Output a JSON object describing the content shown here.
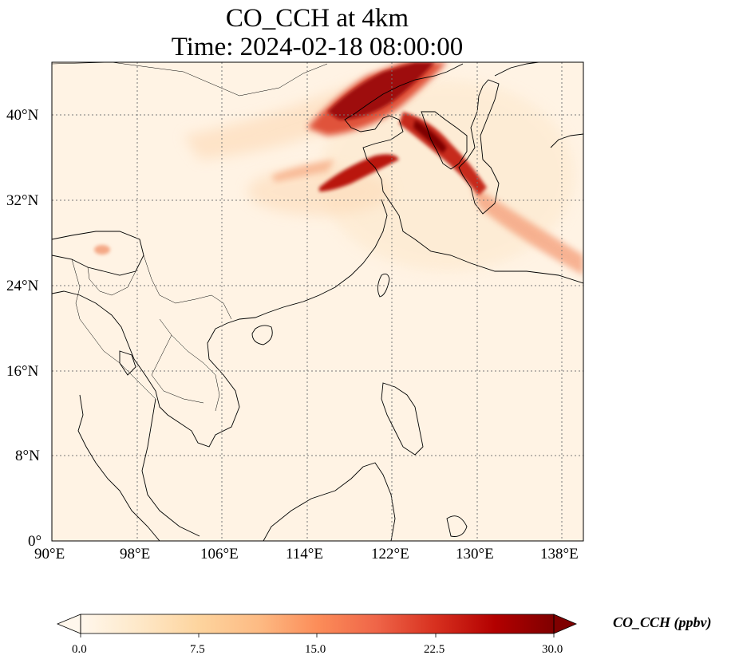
{
  "title_line1": "CO_CCH at 4km",
  "title_line2": "Time: 2024-02-18 08:00:00",
  "lon_ticks": [
    "90°E",
    "98°E",
    "106°E",
    "114°E",
    "122°E",
    "130°E",
    "138°E"
  ],
  "lat_ticks": [
    "40°N",
    "32°N",
    "24°N",
    "16°N",
    "8°N",
    "0°"
  ],
  "colorbar": {
    "label": "CO_CCH (ppbv)",
    "ticks": [
      "0.0",
      "7.5",
      "15.0",
      "22.5",
      "30.0"
    ],
    "min": 0,
    "max": 30,
    "extend": "both",
    "colormap": "OrRd",
    "colors": [
      "#fff7ec",
      "#fee8c8",
      "#fdd49e",
      "#fdbb84",
      "#fc8d59",
      "#ef6548",
      "#d7301f",
      "#b30000",
      "#7f0000"
    ]
  },
  "map_extent": {
    "lon_min": 90,
    "lon_max": 140,
    "lat_min": 0,
    "lat_max": 45
  },
  "gridlines": "dotted"
}
